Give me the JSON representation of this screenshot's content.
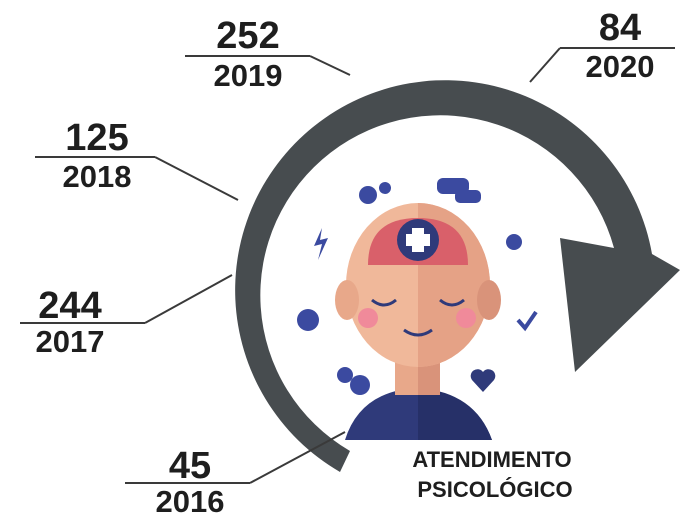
{
  "items": [
    {
      "value": 45,
      "year": 2016
    },
    {
      "value": 244,
      "year": 2017
    },
    {
      "value": 125,
      "year": 2018
    },
    {
      "value": 252,
      "year": 2019
    },
    {
      "value": 84,
      "year": 2020
    }
  ],
  "caption": [
    "ATENDIMENTO",
    "PSICOLÓGICO"
  ]
}
